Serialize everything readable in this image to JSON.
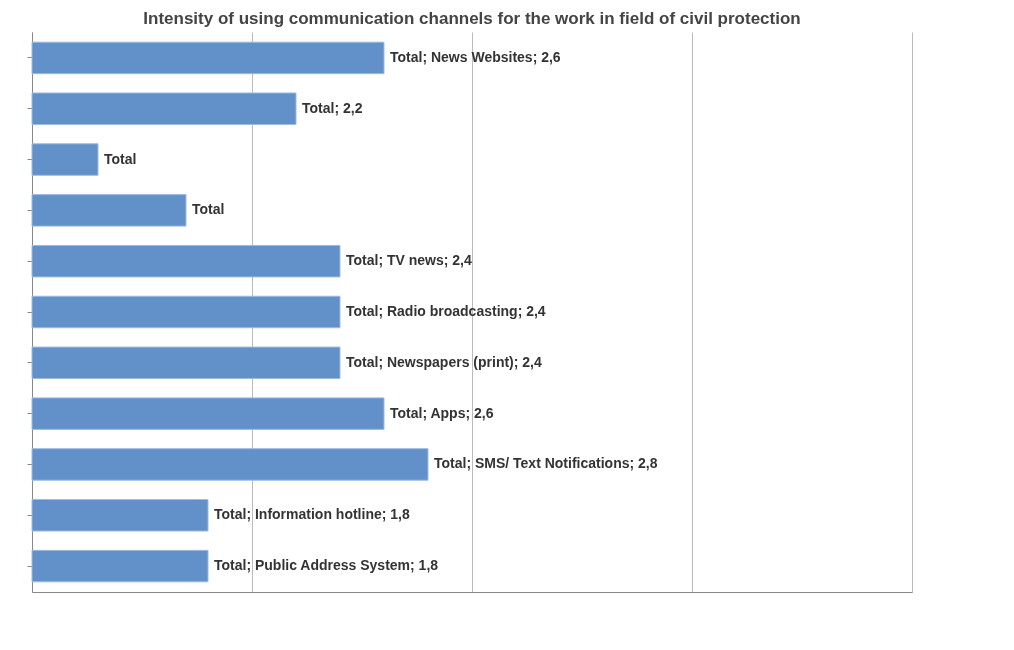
{
  "chart_data": {
    "type": "bar",
    "orientation": "horizontal",
    "title": "Intensity of using communication channels for the work in field of civil protection",
    "categories": [
      null,
      null,
      null,
      null,
      null,
      null,
      null,
      null,
      null,
      null,
      null
    ],
    "values": [
      2.6,
      2.2,
      1.3,
      1.7,
      2.4,
      2.4,
      2.4,
      2.6,
      2.8,
      1.8,
      1.8
    ],
    "value_labels": [
      "Total; News Websites; 2,6",
      "Total; 2,2",
      "Total",
      "Total",
      "Total; TV news; 2,4",
      "Total; Radio broadcasting; 2,4",
      "Total; Newspapers (print); 2,4",
      "Total; Apps; 2,6",
      "Total; SMS/ Text Notifications; 2,8",
      "Total; Information hotline; 1,8",
      "Total; Public Address System; 1,8"
    ],
    "color": "#6290c8",
    "xlim": [
      1,
      5
    ],
    "xticks": [
      {
        "value": 1,
        "label": null
      },
      {
        "value": 2,
        "label": null
      },
      {
        "value": 3,
        "label": null
      },
      {
        "value": 4,
        "label": null
      },
      {
        "value": 5,
        "label": null
      }
    ],
    "grid": "x"
  }
}
